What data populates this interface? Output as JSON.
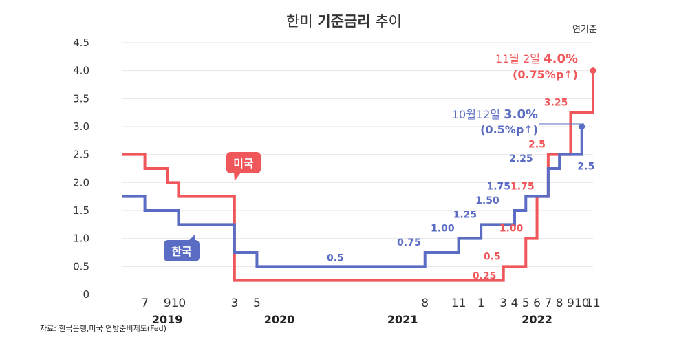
{
  "title": {
    "normal1": "한미 ",
    "bold": "기준금리",
    "normal2": " 추이"
  },
  "unit_note": "연기준",
  "source": "자료: 한국은행,미국 연방준비제도(Fed)",
  "colors": {
    "us": "#f0575a",
    "kr": "#5b6cc4",
    "grid": "#e6e6e6"
  },
  "chart_data": {
    "type": "line",
    "step": true,
    "title": "한미 기준금리 추이",
    "ylabel": "",
    "xlabel": "",
    "ylim": [
      0,
      4.5
    ],
    "yticks": [
      "0",
      "0.5",
      "1.0",
      "1.5",
      "2.0",
      "2.5",
      "3.0",
      "3.5",
      "4.0",
      "4.5"
    ],
    "xlim": [
      "2019-05",
      "2022-11"
    ],
    "xticks": [
      {
        "label": "7",
        "date": "2019-07"
      },
      {
        "label": "9",
        "date": "2019-09"
      },
      {
        "label": "10",
        "date": "2019-10"
      },
      {
        "label": "3",
        "date": "2020-03"
      },
      {
        "label": "5",
        "date": "2020-05"
      },
      {
        "label": "8",
        "date": "2021-08"
      },
      {
        "label": "11",
        "date": "2021-11"
      },
      {
        "label": "1",
        "date": "2022-01"
      },
      {
        "label": "3",
        "date": "2022-03"
      },
      {
        "label": "4",
        "date": "2022-04"
      },
      {
        "label": "5",
        "date": "2022-05"
      },
      {
        "label": "6",
        "date": "2022-06"
      },
      {
        "label": "7",
        "date": "2022-07"
      },
      {
        "label": "8",
        "date": "2022-08"
      },
      {
        "label": "9",
        "date": "2022-09"
      },
      {
        "label": "10",
        "date": "2022-10"
      },
      {
        "label": "11",
        "date": "2022-11"
      }
    ],
    "years": [
      {
        "label": "2019",
        "date": "2019-09"
      },
      {
        "label": "2020",
        "date": "2020-07"
      },
      {
        "label": "2021",
        "date": "2021-06"
      },
      {
        "label": "2022",
        "date": "2022-06"
      }
    ],
    "series": [
      {
        "name": "미국",
        "color": "#f0575a",
        "points": [
          {
            "x": "2019-05",
            "y": 2.5
          },
          {
            "x": "2019-07",
            "y": 2.25
          },
          {
            "x": "2019-09",
            "y": 2.0
          },
          {
            "x": "2019-10",
            "y": 1.75
          },
          {
            "x": "2020-03",
            "y": 0.25
          },
          {
            "x": "2022-03",
            "y": 0.5
          },
          {
            "x": "2022-05",
            "y": 1.0
          },
          {
            "x": "2022-06",
            "y": 1.75
          },
          {
            "x": "2022-07",
            "y": 2.5
          },
          {
            "x": "2022-09",
            "y": 3.25
          },
          {
            "x": "2022-11",
            "y": 4.0
          }
        ],
        "labels": [
          {
            "x": "2022-02",
            "y": 0.25,
            "text": "0.25"
          },
          {
            "x": "2022-03",
            "y": 0.5,
            "text": "0.5"
          },
          {
            "x": "2022-05",
            "y": 1.0,
            "text": "1.00"
          },
          {
            "x": "2022-06",
            "y": 1.75,
            "text": "1.75"
          },
          {
            "x": "2022-07",
            "y": 2.5,
            "text": "2.5"
          },
          {
            "x": "2022-09",
            "y": 3.25,
            "text": "3.25"
          }
        ]
      },
      {
        "name": "한국",
        "color": "#5b6cc4",
        "points": [
          {
            "x": "2019-05",
            "y": 1.75
          },
          {
            "x": "2019-07",
            "y": 1.5
          },
          {
            "x": "2019-10",
            "y": 1.25
          },
          {
            "x": "2020-03",
            "y": 0.75
          },
          {
            "x": "2020-05",
            "y": 0.5
          },
          {
            "x": "2021-08",
            "y": 0.75
          },
          {
            "x": "2021-11",
            "y": 1.0
          },
          {
            "x": "2022-01",
            "y": 1.25
          },
          {
            "x": "2022-04",
            "y": 1.5
          },
          {
            "x": "2022-05",
            "y": 1.75
          },
          {
            "x": "2022-07",
            "y": 2.25
          },
          {
            "x": "2022-08",
            "y": 2.5
          },
          {
            "x": "2022-10",
            "y": 3.0
          }
        ],
        "labels": [
          {
            "x": "2020-12",
            "y": 0.5,
            "text": "0.5"
          },
          {
            "x": "2021-08",
            "y": 0.75,
            "text": "0.75"
          },
          {
            "x": "2021-11",
            "y": 1.0,
            "text": "1.00"
          },
          {
            "x": "2022-01",
            "y": 1.25,
            "text": "1.25"
          },
          {
            "x": "2022-03",
            "y": 1.5,
            "text": "1.50"
          },
          {
            "x": "2022-04",
            "y": 1.75,
            "text": "1.75"
          },
          {
            "x": "2022-06",
            "y": 2.25,
            "text": "2.25"
          },
          {
            "x": "2022-09",
            "y": 2.5,
            "text": "2.5"
          }
        ]
      }
    ],
    "annotations": {
      "us": {
        "line1_prefix": "11월 2일 ",
        "line1_value": "4.0%",
        "line2": "(0.75%p↑)"
      },
      "kr": {
        "line1_prefix": "10월12일 ",
        "line1_value": "3.0%",
        "line2": "(0.5%p↑)"
      }
    }
  }
}
